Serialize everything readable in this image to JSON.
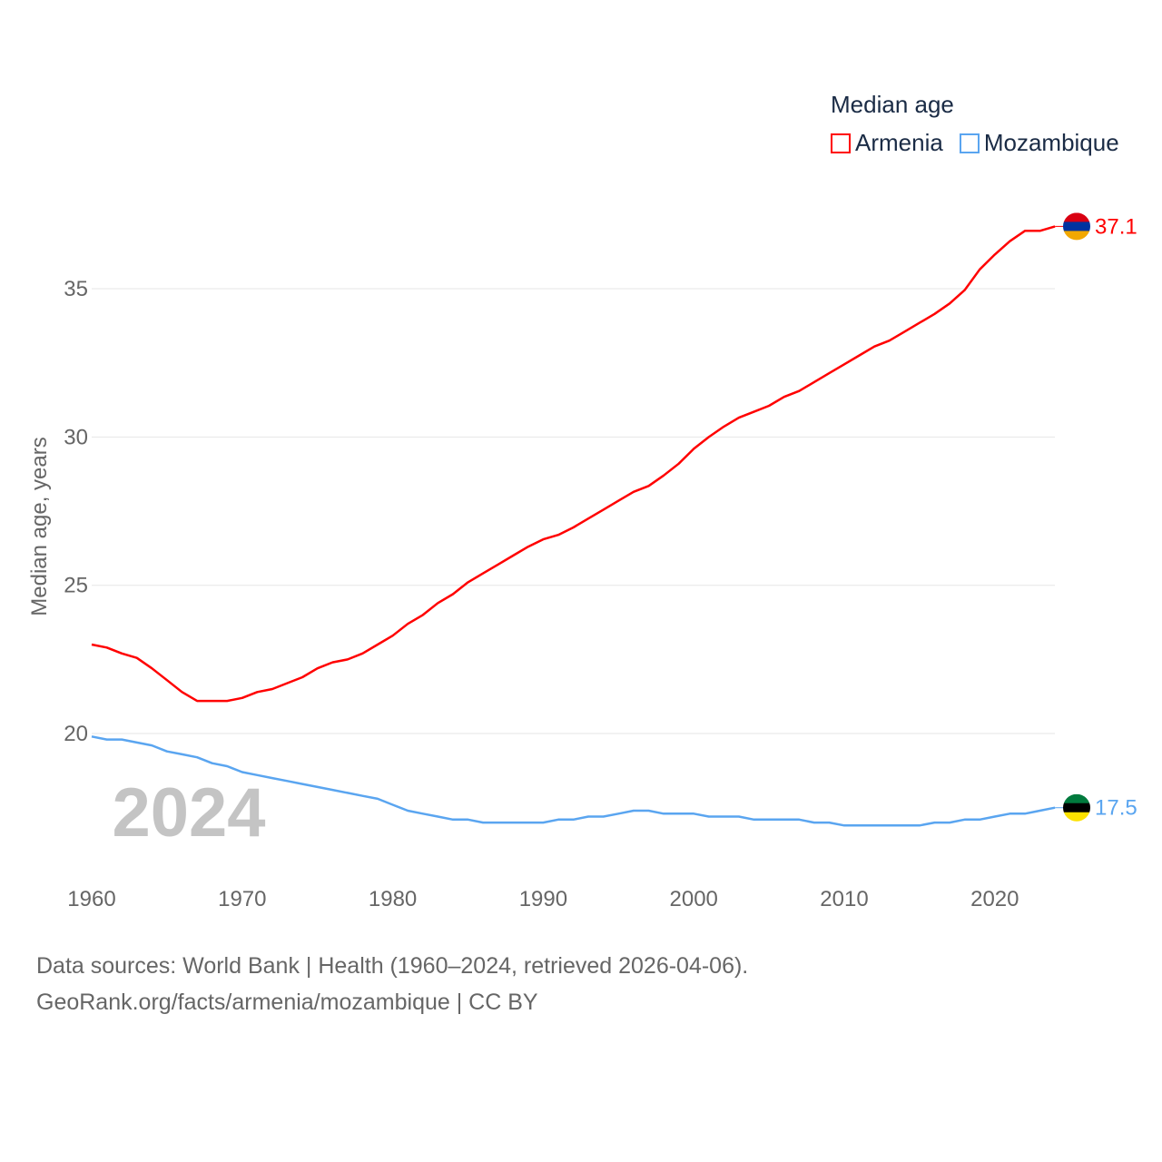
{
  "chart_data": {
    "type": "line",
    "ylabel": "Median age, years",
    "xlabel": "",
    "xlim": [
      1960,
      2024
    ],
    "ylim": [
      16,
      38.5
    ],
    "yticks": [
      20,
      25,
      30,
      35
    ],
    "xticks": [
      1960,
      1970,
      1980,
      1990,
      2000,
      2010,
      2020
    ],
    "ytick_labels": [
      "20",
      "25",
      "30",
      "35"
    ],
    "xtick_labels": [
      "1960",
      "1970",
      "1980",
      "1990",
      "2000",
      "2010",
      "2020"
    ],
    "grid": true,
    "legend_title": "Median age",
    "legend_placement": "top-right",
    "year_watermark": "2024",
    "x": [
      1960,
      1961,
      1962,
      1963,
      1964,
      1965,
      1966,
      1967,
      1968,
      1969,
      1970,
      1971,
      1972,
      1973,
      1974,
      1975,
      1976,
      1977,
      1978,
      1979,
      1980,
      1981,
      1982,
      1983,
      1984,
      1985,
      1986,
      1987,
      1988,
      1989,
      1990,
      1991,
      1992,
      1993,
      1994,
      1995,
      1996,
      1997,
      1998,
      1999,
      2000,
      2001,
      2002,
      2003,
      2004,
      2005,
      2006,
      2007,
      2008,
      2009,
      2010,
      2011,
      2012,
      2013,
      2014,
      2015,
      2016,
      2017,
      2018,
      2019,
      2020,
      2021,
      2022,
      2023,
      2024
    ],
    "series": [
      {
        "name": "Armenia",
        "color": "#ff0000",
        "end_label": "37.1",
        "flag": [
          "#d90012",
          "#0033a0",
          "#f2a800"
        ],
        "values": [
          23.0,
          22.9,
          22.7,
          22.55,
          22.2,
          21.8,
          21.4,
          21.1,
          21.1,
          21.1,
          21.2,
          21.4,
          21.5,
          21.7,
          21.9,
          22.2,
          22.4,
          22.5,
          22.7,
          23.0,
          23.3,
          23.7,
          24.0,
          24.4,
          24.7,
          25.1,
          25.4,
          25.7,
          26.0,
          26.3,
          26.55,
          26.7,
          26.95,
          27.25,
          27.55,
          27.85,
          28.15,
          28.35,
          28.7,
          29.1,
          29.6,
          30.0,
          30.35,
          30.65,
          30.85,
          31.05,
          31.35,
          31.55,
          31.85,
          32.15,
          32.45,
          32.75,
          33.05,
          33.25,
          33.55,
          33.85,
          34.15,
          34.5,
          34.95,
          35.65,
          36.15,
          36.6,
          36.95,
          36.95,
          37.1
        ]
      },
      {
        "name": "Mozambique",
        "color": "#5aa5f0",
        "end_label": "17.5",
        "flag": [
          "#007a3d",
          "#000000",
          "#fce100"
        ],
        "values": [
          19.9,
          19.8,
          19.8,
          19.7,
          19.6,
          19.4,
          19.3,
          19.2,
          19.0,
          18.9,
          18.7,
          18.6,
          18.5,
          18.4,
          18.3,
          18.2,
          18.1,
          18.0,
          17.9,
          17.8,
          17.6,
          17.4,
          17.3,
          17.2,
          17.1,
          17.1,
          17.0,
          17.0,
          17.0,
          17.0,
          17.0,
          17.1,
          17.1,
          17.2,
          17.2,
          17.3,
          17.4,
          17.4,
          17.3,
          17.3,
          17.3,
          17.2,
          17.2,
          17.2,
          17.1,
          17.1,
          17.1,
          17.1,
          17.0,
          17.0,
          16.9,
          16.9,
          16.9,
          16.9,
          16.9,
          16.9,
          17.0,
          17.0,
          17.1,
          17.1,
          17.2,
          17.3,
          17.3,
          17.4,
          17.5
        ]
      }
    ]
  },
  "footer": {
    "line1": "Data sources: World Bank | Health (1960–2024, retrieved 2026-04-06).",
    "line2": "GeoRank.org/facts/armenia/mozambique | CC BY"
  }
}
